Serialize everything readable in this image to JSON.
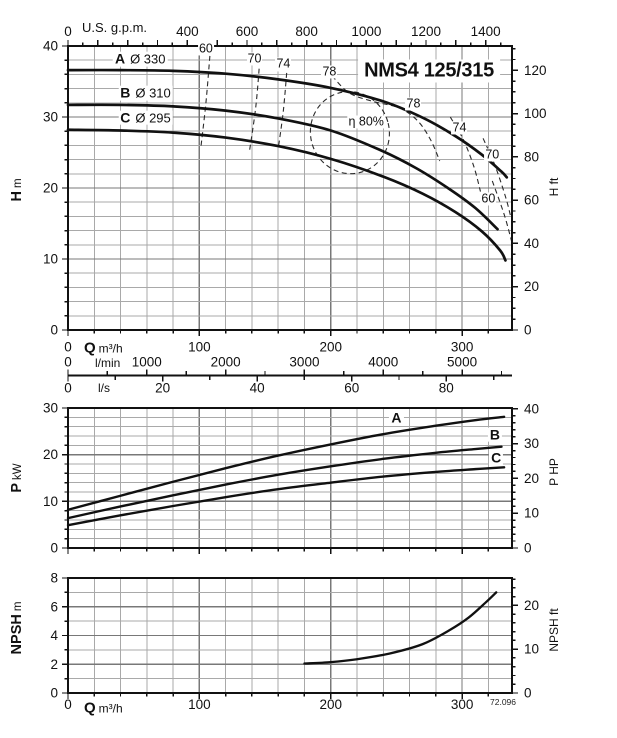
{
  "title": "NMS4 125/315",
  "drawing_number": "72.096",
  "colors": {
    "ink": "#111111",
    "grid_minor": "#a9a9a9",
    "grid_major": "#787878",
    "contour": "#2a2a2a",
    "background": "#ffffff"
  },
  "axis_labels": {
    "gpm": "U.S. g.p.m.",
    "flow_m3h_prefix": {
      "main": "Q",
      "unit": "m³/h"
    },
    "flow_lmin": "l/min",
    "flow_ls": "l/s",
    "head_left": {
      "main": "H",
      "unit": "m"
    },
    "head_right": "H ft",
    "power_left": {
      "main": "P",
      "unit": "kW"
    },
    "power_right": "P HP",
    "npsh_left": {
      "main": "NPSH",
      "unit": "m"
    },
    "npsh_right": "NPSH ft",
    "npsh_flow_prefix": {
      "main": "Q",
      "unit": "m³/h"
    }
  },
  "chart_data": [
    {
      "id": "head",
      "type": "line",
      "title": "NMS4 125/315",
      "xlabel": "Q m³/h",
      "ylabel": "H m",
      "x_range": [
        0,
        338
      ],
      "y_range": [
        0,
        40
      ],
      "grid": {
        "x_step": 20,
        "y_step": 2,
        "x_major": 100,
        "y_major": 10
      },
      "x_ticks_labels": [],
      "y_ticks_labels": [
        0,
        10,
        20,
        30,
        40
      ],
      "right_axis": {
        "unit": "ft",
        "labels": [
          0,
          20,
          40,
          60,
          80,
          100,
          120
        ],
        "per": 3.2808,
        "tick_step": 5,
        "major_step": 20
      },
      "top_axis": {
        "unit": "U.S. g.p.m.",
        "labels": [
          0,
          400,
          600,
          800,
          1000,
          1200,
          1400
        ],
        "per": 4.4029,
        "tick_step": 50,
        "major_step": 100
      },
      "series": [
        {
          "name": "A",
          "diameter": "Ø 330",
          "label_pos": [
            55,
            38.1
          ],
          "points": [
            [
              0,
              36.6
            ],
            [
              40,
              36.6
            ],
            [
              80,
              36.5
            ],
            [
              120,
              36.1
            ],
            [
              160,
              35.3
            ],
            [
              200,
              34.1
            ],
            [
              240,
              32.2
            ],
            [
              270,
              29.9
            ],
            [
              295,
              27.3
            ],
            [
              315,
              24.7
            ],
            [
              330,
              22.3
            ],
            [
              334,
              21.5
            ]
          ]
        },
        {
          "name": "B",
          "diameter": "Ø 310",
          "label_pos": [
            59,
            33.4
          ],
          "points": [
            [
              0,
              31.7
            ],
            [
              40,
              31.7
            ],
            [
              80,
              31.5
            ],
            [
              120,
              30.9
            ],
            [
              160,
              29.8
            ],
            [
              200,
              28.1
            ],
            [
              237,
              25.4
            ],
            [
              265,
              22.8
            ],
            [
              290,
              19.9
            ],
            [
              310,
              17.2
            ],
            [
              327,
              14.2
            ]
          ]
        },
        {
          "name": "C",
          "diameter": "Ø 295",
          "label_pos": [
            59,
            29.9
          ],
          "points": [
            [
              0,
              28.2
            ],
            [
              40,
              28.1
            ],
            [
              80,
              27.8
            ],
            [
              120,
              27.1
            ],
            [
              160,
              25.9
            ],
            [
              200,
              24.1
            ],
            [
              240,
              21.6
            ],
            [
              270,
              19.2
            ],
            [
              295,
              16.6
            ],
            [
              315,
              13.9
            ],
            [
              329,
              11.2
            ],
            [
              333,
              9.8
            ]
          ]
        }
      ],
      "efficiency": {
        "labels": [
          {
            "text": "60",
            "q": 105,
            "h": 39.6
          },
          {
            "text": "70",
            "q": 142,
            "h": 38.2
          },
          {
            "text": "74",
            "q": 164,
            "h": 37.4
          },
          {
            "text": "78",
            "q": 199,
            "h": 36.3
          },
          {
            "text": "78",
            "q": 263,
            "h": 31.8
          },
          {
            "text": "74",
            "q": 298,
            "h": 28.4
          },
          {
            "text": "70",
            "q": 323,
            "h": 24.6
          },
          {
            "text": "60",
            "q": 320,
            "h": 18.4
          },
          {
            "text": "η 80%",
            "q": 227,
            "h": 29.3
          }
        ],
        "contours": [
          {
            "value": 60,
            "side": "left",
            "points": [
              [
                108,
                38.6
              ],
              [
                105,
                32.0
              ],
              [
                101,
                25.5
              ]
            ]
          },
          {
            "value": 70,
            "side": "left",
            "points": [
              [
                146,
                38.0
              ],
              [
                143,
                31.5
              ],
              [
                138,
                25.0
              ]
            ]
          },
          {
            "value": 74,
            "side": "left",
            "points": [
              [
                167,
                37.4
              ],
              [
                164,
                31.0
              ],
              [
                160,
                25.5
              ]
            ]
          },
          {
            "value": 78,
            "side": "arc",
            "points": [
              [
                201,
                35.8
              ],
              [
                214,
                33.4
              ],
              [
                232,
                32.2
              ],
              [
                252,
                31.3
              ],
              [
                266,
                29.5
              ],
              [
                276,
                26.8
              ],
              [
                283,
                23.8
              ]
            ]
          },
          {
            "value": 74,
            "side": "right",
            "points": [
              [
                291,
                30.0
              ],
              [
                301,
                26.8
              ],
              [
                309,
                23.0
              ],
              [
                314,
                19.5
              ]
            ]
          },
          {
            "value": 70,
            "side": "right",
            "points": [
              [
                316,
                27.0
              ],
              [
                325,
                23.2
              ],
              [
                333,
                18.8
              ],
              [
                337,
                16.0
              ]
            ]
          },
          {
            "value": 60,
            "side": "right",
            "points": [
              [
                323,
                21.0
              ],
              [
                332,
                16.3
              ],
              [
                338,
                12.3
              ]
            ]
          }
        ],
        "ellipse": {
          "center": [
            214.6,
            27.8
          ],
          "rx": 30,
          "ry": 5.8,
          "rotation_deg": -14
        }
      },
      "bottom_axes": {
        "m3h": {
          "label": "Q m³/h",
          "ticks": [
            0,
            100,
            200,
            300
          ]
        },
        "lmin": {
          "label": "l/min",
          "ticks": [
            0,
            1000,
            2000,
            3000,
            4000,
            5000
          ],
          "per": 16.6667,
          "tick_step": 500,
          "major_step": 1000
        },
        "ls": {
          "label": "l/s",
          "ticks": [
            0,
            20,
            40,
            60,
            80
          ],
          "per": 0.277778,
          "tick_step": 10,
          "major_step": 20
        }
      }
    },
    {
      "id": "power",
      "type": "line",
      "xlabel": "Q m³/h",
      "ylabel": "P kW",
      "x_range": [
        0,
        338
      ],
      "y_range": [
        0,
        30
      ],
      "grid": {
        "x_step": 20,
        "y_step": 2,
        "x_major": 100,
        "y_major": 10
      },
      "x_ticks_labels": [],
      "y_ticks_labels": [
        0,
        10,
        20,
        30
      ],
      "right_axis": {
        "unit": "HP",
        "labels": [
          0,
          10,
          20,
          30,
          40
        ],
        "per": 1.341,
        "tick_step": 2,
        "major_step": 10
      },
      "series": [
        {
          "name": "A",
          "label_pos": [
            250,
            27.9
          ],
          "points": [
            [
              0,
              8.2
            ],
            [
              40,
              11.2
            ],
            [
              80,
              14.2
            ],
            [
              120,
              17.1
            ],
            [
              160,
              19.8
            ],
            [
              200,
              22.2
            ],
            [
              240,
              24.4
            ],
            [
              280,
              26.2
            ],
            [
              310,
              27.4
            ],
            [
              332,
              28.1
            ]
          ]
        },
        {
          "name": "B",
          "label_pos": [
            325,
            24.3
          ],
          "points": [
            [
              0,
              6.4
            ],
            [
              40,
              8.9
            ],
            [
              80,
              11.3
            ],
            [
              120,
              13.6
            ],
            [
              160,
              15.7
            ],
            [
              200,
              17.5
            ],
            [
              240,
              19.1
            ],
            [
              280,
              20.4
            ],
            [
              310,
              21.2
            ],
            [
              330,
              21.7
            ]
          ]
        },
        {
          "name": "C",
          "label_pos": [
            326,
            19.3
          ],
          "points": [
            [
              0,
              4.9
            ],
            [
              40,
              7.0
            ],
            [
              80,
              9.0
            ],
            [
              120,
              10.9
            ],
            [
              160,
              12.6
            ],
            [
              200,
              14.0
            ],
            [
              240,
              15.3
            ],
            [
              280,
              16.3
            ],
            [
              310,
              16.9
            ],
            [
              332,
              17.3
            ]
          ]
        }
      ]
    },
    {
      "id": "npsh",
      "type": "line",
      "xlabel": "Q m³/h",
      "ylabel": "NPSH m",
      "x_range": [
        0,
        338
      ],
      "y_range": [
        0,
        8
      ],
      "grid": {
        "x_step": 20,
        "y_step": 1,
        "x_major": 100,
        "y_major": 2
      },
      "x_ticks_labels": [
        0,
        100,
        200,
        300
      ],
      "y_ticks_labels": [
        0,
        2,
        4,
        6,
        8
      ],
      "right_axis": {
        "unit": "ft",
        "labels": [
          0,
          10,
          20
        ],
        "per": 3.2808,
        "tick_step": 2,
        "major_step": 10
      },
      "series": [
        {
          "name": "NPSH",
          "points": [
            [
              180,
              2.05
            ],
            [
              200,
              2.15
            ],
            [
              220,
              2.35
            ],
            [
              245,
              2.75
            ],
            [
              270,
              3.4
            ],
            [
              290,
              4.35
            ],
            [
              305,
              5.25
            ],
            [
              318,
              6.3
            ],
            [
              326,
              7.0
            ]
          ]
        }
      ]
    }
  ]
}
